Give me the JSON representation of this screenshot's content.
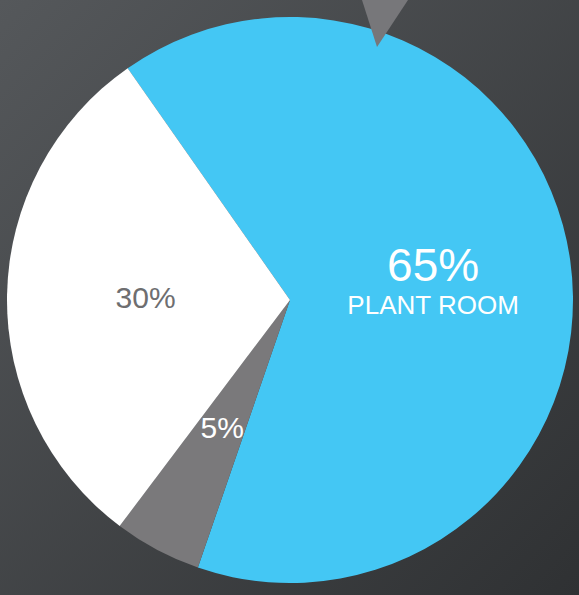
{
  "chart_data": {
    "type": "pie",
    "categories": [
      "PLANT ROOM",
      null,
      null
    ],
    "values": [
      65,
      5,
      30
    ],
    "value_labels": [
      "65%",
      "5%",
      "30%"
    ],
    "colors": [
      "#44c7f4",
      "#7a797b",
      "#ffffff"
    ],
    "data_labels": true
  }
}
